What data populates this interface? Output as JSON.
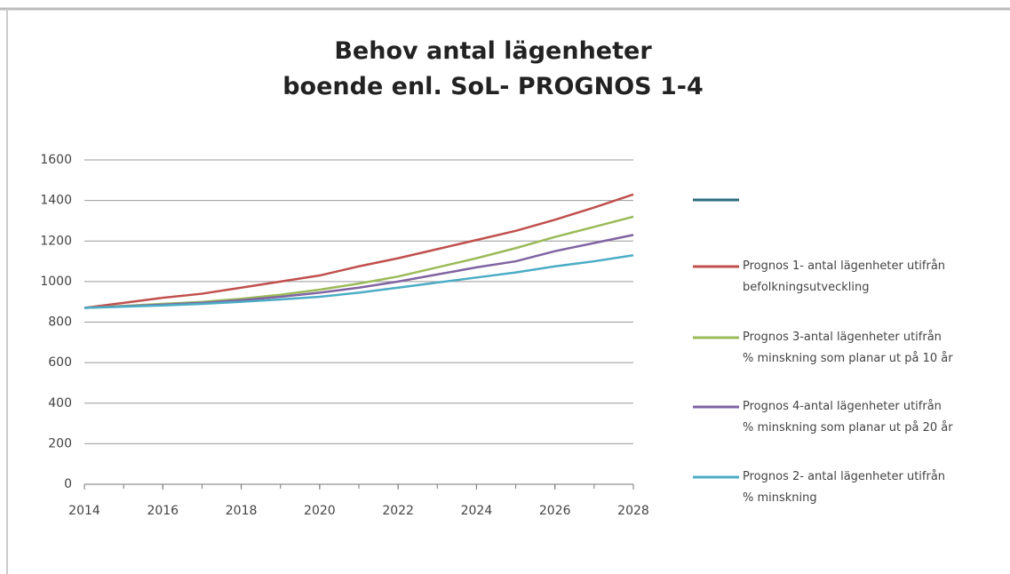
{
  "chart_data": {
    "type": "line",
    "title": "Behov antal lägenheter\nboende enl. SoL- PROGNOS 1-4",
    "x": [
      2014,
      2015,
      2016,
      2017,
      2018,
      2019,
      2020,
      2021,
      2022,
      2023,
      2024,
      2025,
      2026,
      2027,
      2028
    ],
    "series": [
      {
        "color": "#2e6b80",
        "values": [
          null,
          null,
          null,
          null,
          null,
          null,
          null,
          null,
          null,
          null,
          null,
          null,
          null,
          null,
          null
        ]
      },
      {
        "name": "Prognos 1- antal lägenheter utifrån\nbefolkningsutveckling",
        "color": "#c0504d",
        "values": [
          870,
          895,
          920,
          940,
          970,
          1000,
          1030,
          1075,
          1115,
          1160,
          1205,
          1250,
          1305,
          1365,
          1430
        ]
      },
      {
        "name": "Prognos 3-antal lägenheter utifrån\n% minskning som planar ut på 10 år",
        "color": "#9bbb59",
        "values": [
          870,
          880,
          890,
          900,
          915,
          935,
          960,
          990,
          1025,
          1070,
          1115,
          1165,
          1220,
          1270,
          1320
        ]
      },
      {
        "name": "Prognos 4-antal lägenheter utifrån\n% minskning som planar ut på 20 år",
        "color": "#8064a2",
        "values": [
          870,
          878,
          886,
          895,
          908,
          925,
          945,
          970,
          1000,
          1035,
          1070,
          1100,
          1150,
          1190,
          1230
        ]
      },
      {
        "name": "Prognos 2- antal lägenheter utifrån\n% minskning",
        "color": "#4bacc6",
        "values": [
          870,
          876,
          882,
          890,
          900,
          912,
          925,
          945,
          970,
          995,
          1020,
          1045,
          1075,
          1100,
          1130
        ]
      }
    ],
    "xlim": [
      2014,
      2028
    ],
    "xticks": [
      2014,
      2016,
      2018,
      2020,
      2022,
      2024,
      2026,
      2028
    ],
    "ylim": [
      0,
      1600
    ],
    "yticks": [
      0,
      200,
      400,
      600,
      800,
      1000,
      1200,
      1400,
      1600
    ],
    "grid": true,
    "legend": "right"
  }
}
